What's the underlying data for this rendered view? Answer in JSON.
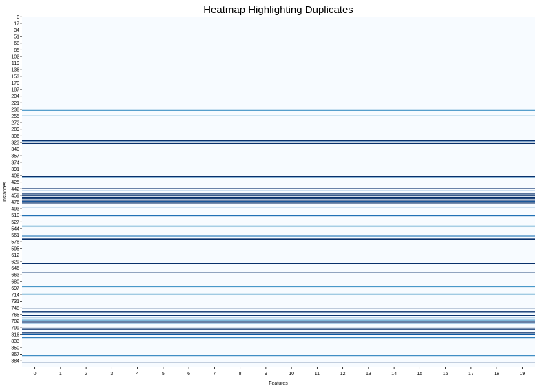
{
  "chart_data": {
    "type": "heatmap",
    "title": "Heatmap Highlighting Duplicates",
    "xlabel": "Features",
    "ylabel": "Instances",
    "x_tick_labels": [
      "0",
      "1",
      "2",
      "3",
      "4",
      "5",
      "6",
      "7",
      "8",
      "9",
      "10",
      "11",
      "12",
      "13",
      "14",
      "15",
      "16",
      "17",
      "18",
      "19"
    ],
    "y_tick_labels": [
      "0",
      "17",
      "34",
      "51",
      "68",
      "85",
      "102",
      "119",
      "136",
      "153",
      "170",
      "187",
      "204",
      "221",
      "238",
      "255",
      "272",
      "289",
      "306",
      "323",
      "340",
      "357",
      "374",
      "391",
      "408",
      "425",
      "442",
      "459",
      "476",
      "493",
      "510",
      "527",
      "544",
      "561",
      "578",
      "595",
      "612",
      "629",
      "646",
      "663",
      "680",
      "697",
      "714",
      "731",
      "748",
      "765",
      "782",
      "799",
      "816",
      "833",
      "850",
      "867",
      "884"
    ],
    "y_tick_step": 17,
    "n_rows": 900,
    "n_features": 20,
    "colormap": "Blues",
    "colorbar": false,
    "background_color": "#f7fbff",
    "highlighted_rows": [
      {
        "row": 240,
        "value": 0.6
      },
      {
        "row": 254,
        "value": 0.45
      },
      {
        "row": 318,
        "value": 1.0
      },
      {
        "row": 321,
        "value": 0.85
      },
      {
        "row": 325,
        "value": 1.0
      },
      {
        "row": 410,
        "value": 1.0
      },
      {
        "row": 413,
        "value": 0.7
      },
      {
        "row": 441,
        "value": 1.0
      },
      {
        "row": 447,
        "value": 0.8
      },
      {
        "row": 455,
        "value": 1.0
      },
      {
        "row": 459,
        "value": 1.0
      },
      {
        "row": 463,
        "value": 1.0
      },
      {
        "row": 467,
        "value": 1.0
      },
      {
        "row": 471,
        "value": 1.0
      },
      {
        "row": 474,
        "value": 0.9
      },
      {
        "row": 478,
        "value": 1.0
      },
      {
        "row": 488,
        "value": 0.8
      },
      {
        "row": 511,
        "value": 0.75
      },
      {
        "row": 537,
        "value": 0.45
      },
      {
        "row": 539,
        "value": 0.35
      },
      {
        "row": 563,
        "value": 0.7
      },
      {
        "row": 570,
        "value": 1.0
      },
      {
        "row": 572,
        "value": 1.0
      },
      {
        "row": 633,
        "value": 1.0
      },
      {
        "row": 657,
        "value": 1.0
      },
      {
        "row": 693,
        "value": 0.6
      },
      {
        "row": 712,
        "value": 0.4
      },
      {
        "row": 748,
        "value": 1.0
      },
      {
        "row": 757,
        "value": 1.0
      },
      {
        "row": 760,
        "value": 0.9
      },
      {
        "row": 767,
        "value": 1.0
      },
      {
        "row": 771,
        "value": 0.75
      },
      {
        "row": 776,
        "value": 0.55
      },
      {
        "row": 779,
        "value": 0.55
      },
      {
        "row": 784,
        "value": 1.0
      },
      {
        "row": 788,
        "value": 0.75
      },
      {
        "row": 799,
        "value": 1.0
      },
      {
        "row": 802,
        "value": 1.0
      },
      {
        "row": 812,
        "value": 1.0
      },
      {
        "row": 815,
        "value": 0.85
      },
      {
        "row": 824,
        "value": 0.7
      },
      {
        "row": 870,
        "value": 0.65
      },
      {
        "row": 889,
        "value": 1.0
      }
    ]
  }
}
